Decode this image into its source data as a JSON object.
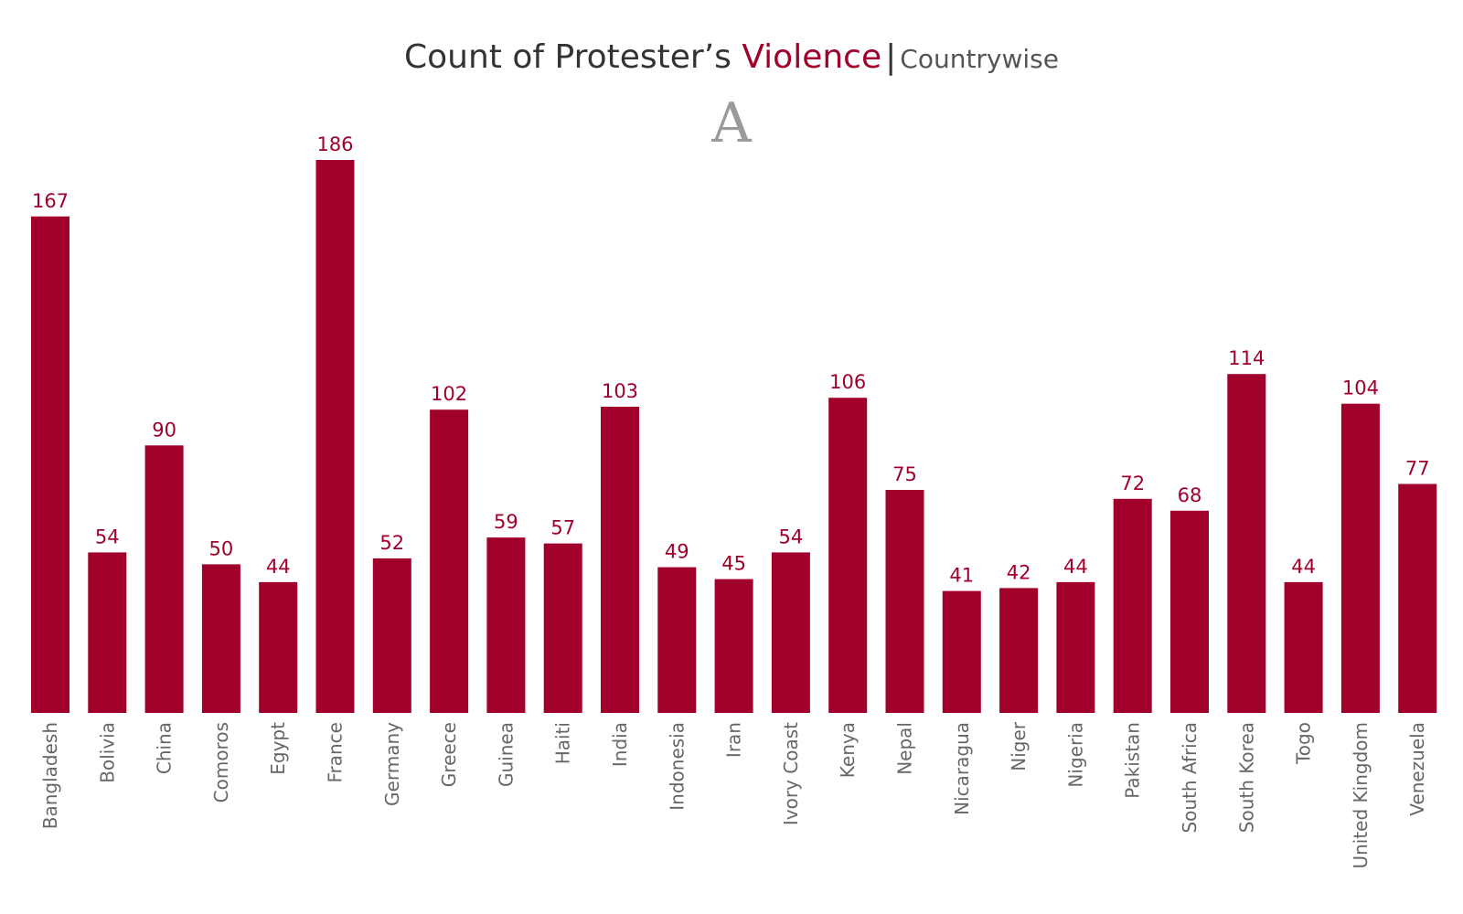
{
  "title": {
    "main": "Count of Protester’s ",
    "accent": "Violence",
    "separator": "|",
    "subtitle": "Countrywise"
  },
  "marker_letter": "A",
  "colors": {
    "bar": "#a1002b",
    "value_label": "#a1002b",
    "category_label": "#666666",
    "title": "#333333"
  },
  "chart_data": {
    "type": "bar",
    "title": "Count of Protester’s Violence | Countrywise",
    "xlabel": "",
    "ylabel": "",
    "ylim": [
      0,
      186
    ],
    "grid": false,
    "legend": "none",
    "categories": [
      "Bangladesh",
      "Bolivia",
      "China",
      "Comoros",
      "Egypt",
      "France",
      "Germany",
      "Greece",
      "Guinea",
      "Haiti",
      "India",
      "Indonesia",
      "Iran",
      "Ivory Coast",
      "Kenya",
      "Nepal",
      "Nicaragua",
      "Niger",
      "Nigeria",
      "Pakistan",
      "South Africa",
      "South Korea",
      "Togo",
      "United Kingdom",
      "Venezuela"
    ],
    "values": [
      167,
      54,
      90,
      50,
      44,
      186,
      52,
      102,
      59,
      57,
      103,
      49,
      45,
      54,
      106,
      75,
      41,
      42,
      44,
      72,
      68,
      114,
      44,
      104,
      77
    ]
  }
}
